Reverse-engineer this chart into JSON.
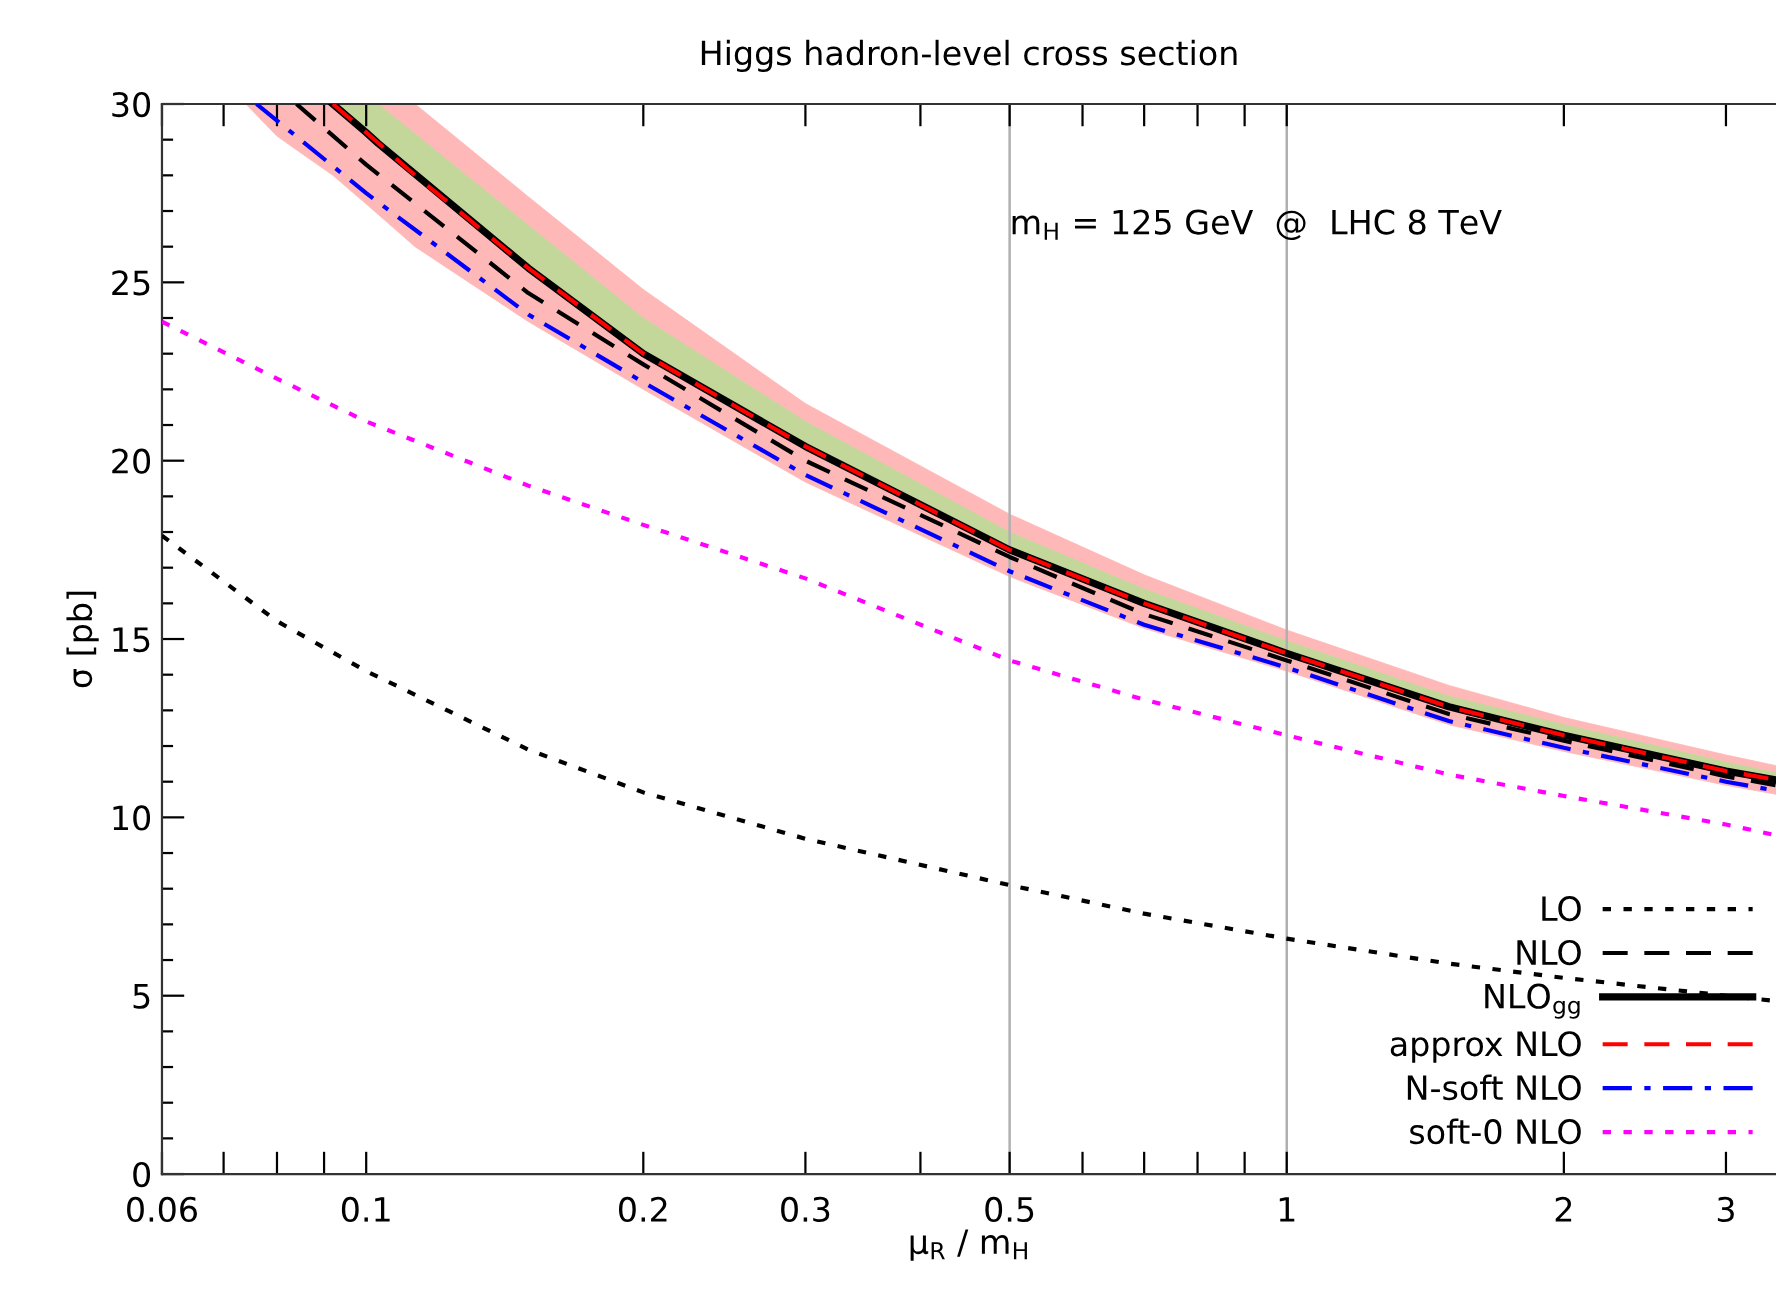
{
  "chart_data": {
    "type": "line",
    "title": "Higgs hadron-level cross section",
    "xlabel": "μ$_{R}$ / m$_{H}$",
    "ylabel": "σ [pb]",
    "log": "x",
    "xlim": [
      0.06,
      3.4
    ],
    "ylim": [
      0,
      30
    ],
    "xticks": [
      0.06,
      {
        "value": 0.07,
        "label": null
      },
      {
        "value": 0.08,
        "label": null
      },
      {
        "value": 0.09,
        "label": null
      },
      0.1,
      0.2,
      0.3,
      {
        "value": 0.4,
        "label": null
      },
      0.5,
      {
        "value": 0.6,
        "label": null
      },
      {
        "value": 0.7,
        "label": null
      },
      {
        "value": 0.8,
        "label": null
      },
      {
        "value": 0.9,
        "label": null
      },
      1,
      2,
      3
    ],
    "yticks": [
      0,
      {
        "value": 1,
        "label": null
      },
      {
        "value": 2,
        "label": null
      },
      {
        "value": 3,
        "label": null
      },
      {
        "value": 4,
        "label": null
      },
      5,
      {
        "value": 6,
        "label": null
      },
      {
        "value": 7,
        "label": null
      },
      {
        "value": 8,
        "label": null
      },
      {
        "value": 9,
        "label": null
      },
      10,
      {
        "value": 11,
        "label": null
      },
      {
        "value": 12,
        "label": null
      },
      {
        "value": 13,
        "label": null
      },
      {
        "value": 14,
        "label": null
      },
      15,
      {
        "value": 16,
        "label": null
      },
      {
        "value": 17,
        "label": null
      },
      {
        "value": 18,
        "label": null
      },
      {
        "value": 19,
        "label": null
      },
      20,
      {
        "value": 21,
        "label": null
      },
      {
        "value": 22,
        "label": null
      },
      {
        "value": 23,
        "label": null
      },
      {
        "value": 24,
        "label": null
      },
      25,
      {
        "value": 26,
        "label": null
      },
      {
        "value": 27,
        "label": null
      },
      {
        "value": 28,
        "label": null
      },
      {
        "value": 29,
        "label": null
      },
      30
    ],
    "grid": false,
    "legend": "bottom right",
    "ref_lines": [
      {
        "axis": "x",
        "value": 0.5,
        "color": "#b0b0b0"
      },
      {
        "axis": "x",
        "value": 1,
        "color": "#b0b0b0"
      }
    ],
    "annotations": [
      {
        "text": "m$_{H}$ = 125 GeV  @  LHC 8 TeV",
        "x": 0.5,
        "y": 26.6
      }
    ],
    "series": [
      {
        "name": "LO",
        "color": "#000000",
        "line_style": "dotted",
        "x": [
          0.06,
          0.08,
          0.1,
          0.15,
          0.2,
          0.3,
          0.5,
          0.7,
          1,
          1.5,
          2,
          3,
          3.4
        ],
        "values": [
          17.9,
          15.5,
          14.1,
          11.9,
          10.7,
          9.4,
          8.1,
          7.3,
          6.6,
          5.9,
          5.5,
          5.0,
          4.85
        ]
      },
      {
        "name": "NLO",
        "color": "#000000",
        "line_style": "dashed",
        "x": [
          0.084,
          0.1,
          0.15,
          0.2,
          0.3,
          0.5,
          0.7,
          1,
          1.5,
          2,
          3,
          3.4
        ],
        "values": [
          30,
          28.3,
          24.7,
          22.7,
          20.0,
          17.3,
          15.7,
          14.4,
          12.9,
          12.15,
          11.15,
          10.9
        ]
      },
      {
        "name": "NLO$_{gg}$",
        "color": "#000000",
        "line_style": "solid",
        "colors": [
          "#c4d79b",
          "#c4d79b",
          "#c4d79b",
          "#c4d79b",
          "#c4d79b",
          "#c4d79b",
          "#c4d79b",
          "#c4d79b",
          "#c4d79b",
          "#c4d79b",
          "#c4d79b",
          "#c4d79b",
          "#c4d79b"
        ],
        "x": [
          0.092,
          0.1,
          0.103,
          0.15,
          0.2,
          0.3,
          0.5,
          0.7,
          1,
          1.5,
          2,
          3,
          3.4
        ],
        "values": [
          30,
          29.2,
          28.9,
          25.4,
          23.0,
          20.4,
          17.5,
          16.0,
          14.6,
          13.1,
          12.3,
          11.3,
          11.05
        ],
        "lower": [
          30,
          29.2,
          28.9,
          25.4,
          23.0,
          20.4,
          17.5,
          16.0,
          14.6,
          13.1,
          12.3,
          11.3,
          11.05
        ],
        "upper": [
          30,
          30,
          30,
          26.6,
          24.0,
          21.1,
          18.0,
          16.4,
          14.95,
          13.4,
          12.6,
          11.55,
          11.25
        ]
      },
      {
        "name": "approx NLO",
        "color": "#ff0000",
        "line_style": "dashed",
        "colors": [
          "#ffb8b8",
          "#ffb8b8",
          "#ffb8b8",
          "#ffb8b8",
          "#ffb8b8",
          "#ffb8b8",
          "#ffb8b8",
          "#ffb8b8",
          "#ffb8b8",
          "#ffb8b8",
          "#ffb8b8",
          "#ffb8b8",
          "#ffb8b8",
          "#ffb8b8",
          "#ffb8b8"
        ],
        "x": [
          0.074,
          0.08,
          0.092,
          0.1,
          0.113,
          0.15,
          0.2,
          0.3,
          0.5,
          0.7,
          1,
          1.5,
          2,
          3,
          3.4
        ],
        "values": [
          null,
          null,
          30,
          29.2,
          28.0,
          25.4,
          23.0,
          20.4,
          17.5,
          16.0,
          14.6,
          13.1,
          12.3,
          11.3,
          11.05
        ],
        "lower": [
          30,
          29.1,
          28.0,
          27.2,
          26.0,
          23.9,
          22.0,
          19.4,
          16.75,
          15.3,
          14.1,
          12.6,
          11.85,
          10.9,
          10.65
        ],
        "upper": [
          30,
          30,
          30,
          30,
          30,
          27.4,
          24.8,
          21.6,
          18.5,
          16.8,
          15.25,
          13.7,
          12.8,
          11.75,
          11.45
        ]
      },
      {
        "name": "N-soft NLO",
        "color": "#0000ff",
        "line_style": "dashdot",
        "x": [
          0.076,
          0.1,
          0.15,
          0.2,
          0.3,
          0.5,
          0.7,
          1,
          1.5,
          2,
          3,
          3.4
        ],
        "values": [
          30,
          27.5,
          24.1,
          22.2,
          19.6,
          16.9,
          15.4,
          14.2,
          12.7,
          11.95,
          11.0,
          10.75
        ]
      },
      {
        "name": "soft-0 NLO",
        "color": "#ff00ff",
        "line_style": "dotted",
        "x": [
          0.06,
          0.08,
          0.1,
          0.15,
          0.2,
          0.3,
          0.5,
          0.7,
          1,
          1.5,
          2,
          3,
          3.4
        ],
        "values": [
          23.9,
          22.3,
          21.1,
          19.3,
          18.2,
          16.7,
          14.4,
          13.3,
          12.3,
          11.2,
          10.6,
          9.8,
          9.5
        ]
      }
    ]
  }
}
